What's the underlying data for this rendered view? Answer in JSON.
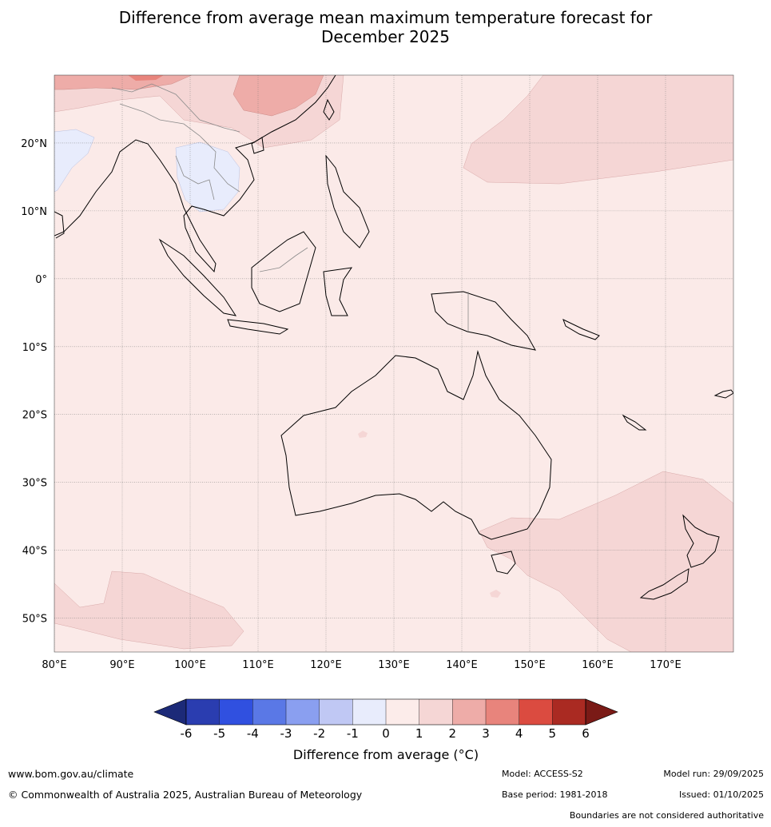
{
  "title": {
    "line1": "Difference from average mean maximum temperature forecast for",
    "line2": "December 2025"
  },
  "map": {
    "lon_range": [
      80,
      180
    ],
    "lat_range": [
      -55,
      30
    ],
    "lat_labels": [
      {
        "lat": 20,
        "label": "20°N"
      },
      {
        "lat": 10,
        "label": "10°N"
      },
      {
        "lat": 0,
        "label": "0°"
      },
      {
        "lat": -10,
        "label": "10°S"
      },
      {
        "lat": -20,
        "label": "20°S"
      },
      {
        "lat": -30,
        "label": "30°S"
      },
      {
        "lat": -40,
        "label": "40°S"
      },
      {
        "lat": -50,
        "label": "50°S"
      }
    ],
    "lon_labels": [
      {
        "lon": 80,
        "label": "80°E"
      },
      {
        "lon": 90,
        "label": "90°E"
      },
      {
        "lon": 100,
        "label": "100°E"
      },
      {
        "lon": 110,
        "label": "110°E"
      },
      {
        "lon": 120,
        "label": "120°E"
      },
      {
        "lon": 130,
        "label": "130°E"
      },
      {
        "lon": 140,
        "label": "140°E"
      },
      {
        "lon": 150,
        "label": "150°E"
      },
      {
        "lon": 160,
        "label": "160°E"
      },
      {
        "lon": 170,
        "label": "170°E"
      }
    ],
    "background_color": "#fbeae8"
  },
  "colorbar": {
    "ticks": [
      "-6",
      "-5",
      "-4",
      "-3",
      "-2",
      "-1",
      "0",
      "1",
      "2",
      "3",
      "4",
      "5",
      "6"
    ],
    "colors": [
      "#2a3db0",
      "#3050e0",
      "#5a78e6",
      "#8a9ff0",
      "#c0c8f4",
      "#e8ecfc",
      "#fcecea",
      "#f5d6d5",
      "#eeaca8",
      "#e8847c",
      "#db4b40",
      "#aa2a22"
    ],
    "under_color": "#1c2a78",
    "over_color": "#7a1a16",
    "label": "Difference from average (",
    "label_symbol": "°C)"
  },
  "footer": {
    "website": "www.bom.gov.au/climate",
    "copyright": "© Commonwealth of Australia 2025, Australian Bureau of Meteorology",
    "model": "Model: ACCESS-S2",
    "base_period": "Base period: 1981-2018",
    "model_run": "Model run: 29/09/2025",
    "issued": "Issued: 01/10/2025",
    "disclaimer": "Boundaries are not considered authoritative"
  }
}
